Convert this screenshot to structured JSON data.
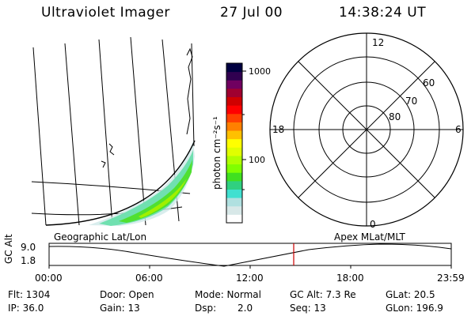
{
  "header": {
    "instrument": "Ultraviolet Imager",
    "date": "27 Jul 00",
    "time": "14:38:24 UT"
  },
  "geo_map": {
    "label": "Geographic Lat/Lon"
  },
  "colorbar": {
    "unit_label": "photon cm⁻²s⁻¹",
    "tick_labels": [
      "1000",
      "100"
    ],
    "colors": [
      "#ffffff",
      "#d8e8e8",
      "#b0e0e0",
      "#40e0d0",
      "#30d080",
      "#40e020",
      "#80ff00",
      "#b0ff00",
      "#e0ff00",
      "#ffff00",
      "#ffc000",
      "#ff8000",
      "#ff4000",
      "#ff0000",
      "#d00000",
      "#a00030",
      "#700060",
      "#300050",
      "#000040"
    ]
  },
  "polar_plot": {
    "label": "Apex MLat/MLT",
    "mlt_labels": {
      "top": "12",
      "left": "18",
      "right": "6",
      "bottom": "0"
    },
    "mlat_labels": [
      "60",
      "70",
      "80"
    ]
  },
  "altitude_strip": {
    "axis_label": "GC Alt",
    "y_ticks": [
      "9.0",
      "1.8"
    ],
    "x_ticks": [
      "00:00",
      "06:00",
      "12:00",
      "18:00",
      "23:59"
    ],
    "marker_color": "#cc0000"
  },
  "info": {
    "flt": "Flt: 1304",
    "door": "Door: Open",
    "mode": "Mode: Normal",
    "gc_alt": "GC Alt: 7.3 Re",
    "glat": "GLat:  20.5",
    "ip": "IP: 36.0",
    "gain": "Gain: 13",
    "dsp_label": "Dsp:",
    "dsp_value": "2.0",
    "seq": "Seq: 13",
    "glon": "GLon: 196.9"
  }
}
